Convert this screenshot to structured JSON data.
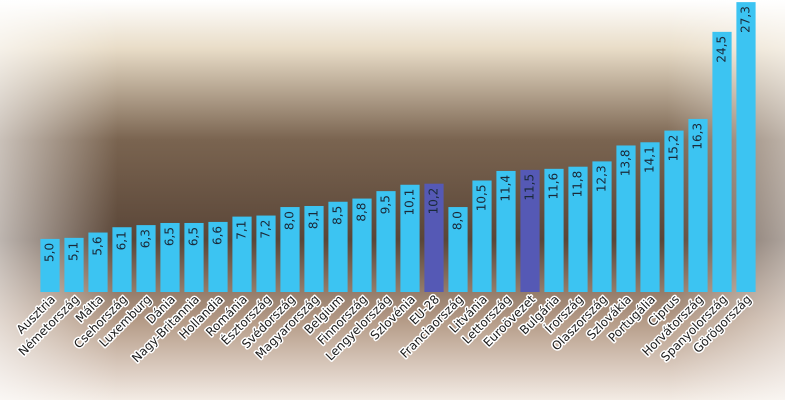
{
  "chart_data": {
    "type": "bar",
    "categories": [
      "Ausztria",
      "Németország",
      "Málta",
      "Csehország",
      "Luxemburg",
      "Dánia",
      "Nagy-Britannia",
      "Hollandia",
      "Románia",
      "Észtország",
      "Svédország",
      "Magyarország",
      "Belgium",
      "Finnország",
      "Lengyelország",
      "Szlovénia",
      "EU-28",
      "Franciaország",
      "Litvánia",
      "Lettország",
      "Euroövezet",
      "Bulgária",
      "Írország",
      "Olaszország",
      "Szlovákia",
      "Portugália",
      "Ciprus",
      "Horvátország",
      "Spanyolország",
      "Görögország"
    ],
    "values": [
      5.0,
      5.1,
      5.6,
      6.1,
      6.3,
      6.5,
      6.5,
      6.6,
      7.1,
      7.2,
      8.0,
      8.1,
      8.5,
      8.8,
      9.5,
      10.1,
      10.2,
      8.0,
      10.5,
      11.4,
      11.5,
      11.6,
      11.8,
      12.3,
      13.8,
      14.1,
      15.2,
      16.3,
      24.5,
      27.3
    ],
    "value_labels": [
      "5,0",
      "5,1",
      "5,6",
      "6,1",
      "6,3",
      "6,5",
      "6,5",
      "6,6",
      "7,1",
      "7,2",
      "8,0",
      "8,1",
      "8,5",
      "8,8",
      "9,5",
      "10,1",
      "10,2",
      "8,0",
      "10,5",
      "11,4",
      "11,5",
      "11,6",
      "11,8",
      "12,3",
      "13,8",
      "14,1",
      "15,2",
      "16,3",
      "24,5",
      "27,3"
    ],
    "colors": [
      "#3cc4f2",
      "#3cc4f2",
      "#3cc4f2",
      "#3cc4f2",
      "#3cc4f2",
      "#3cc4f2",
      "#3cc4f2",
      "#3cc4f2",
      "#3cc4f2",
      "#3cc4f2",
      "#3cc4f2",
      "#3cc4f2",
      "#3cc4f2",
      "#3cc4f2",
      "#3cc4f2",
      "#3cc4f2",
      "#5559b5",
      "#3cc4f2",
      "#3cc4f2",
      "#3cc4f2",
      "#5559b5",
      "#3cc4f2",
      "#3cc4f2",
      "#3cc4f2",
      "#3cc4f2",
      "#3cc4f2",
      "#3cc4f2",
      "#3cc4f2",
      "#3cc4f2",
      "#3cc4f2"
    ],
    "ylim": [
      0,
      27.5
    ]
  }
}
